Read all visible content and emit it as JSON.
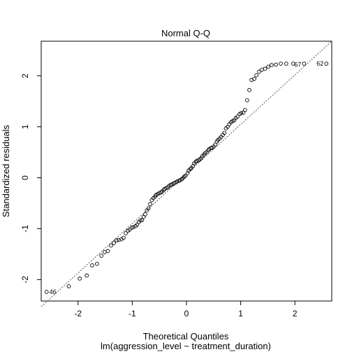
{
  "chart_data": {
    "type": "scatter",
    "title": "Normal Q-Q",
    "xlabel": "Theoretical Quantiles",
    "subtitle": "lm(aggression_level ~ treatment_duration)",
    "ylabel": "Standardized residuals",
    "xlim": [
      -2.68,
      2.68
    ],
    "ylim": [
      -2.42,
      2.68
    ],
    "x_ticks": [
      -2,
      -1,
      0,
      1,
      2
    ],
    "x_tick_labels": [
      "-2",
      "-1",
      "0",
      "1",
      "2"
    ],
    "y_ticks": [
      -2,
      -1,
      0,
      1,
      2
    ],
    "y_tick_labels": [
      "-2",
      "-1",
      "0",
      "1",
      "2"
    ],
    "reference_line": {
      "x1": -2.68,
      "y1": -2.53,
      "x2": 2.68,
      "y2": 2.68,
      "style": "dotted"
    },
    "points_x": [
      -2.58,
      -2.17,
      -1.97,
      -1.84,
      -1.74,
      -1.65,
      -1.57,
      -1.51,
      -1.45,
      -1.39,
      -1.34,
      -1.29,
      -1.25,
      -1.2,
      -1.16,
      -1.12,
      -1.08,
      -1.05,
      -1.01,
      -0.98,
      -0.94,
      -0.91,
      -0.88,
      -0.85,
      -0.82,
      -0.79,
      -0.76,
      -0.73,
      -0.7,
      -0.67,
      -0.64,
      -0.61,
      -0.58,
      -0.56,
      -0.53,
      -0.5,
      -0.47,
      -0.45,
      -0.42,
      -0.4,
      -0.37,
      -0.34,
      -0.32,
      -0.29,
      -0.27,
      -0.24,
      -0.22,
      -0.19,
      -0.17,
      -0.14,
      -0.12,
      -0.09,
      -0.07,
      -0.04,
      -0.02,
      0.02,
      0.04,
      0.07,
      0.09,
      0.12,
      0.14,
      0.17,
      0.19,
      0.22,
      0.24,
      0.27,
      0.29,
      0.32,
      0.34,
      0.37,
      0.4,
      0.42,
      0.45,
      0.47,
      0.5,
      0.53,
      0.56,
      0.58,
      0.61,
      0.64,
      0.67,
      0.7,
      0.73,
      0.76,
      0.79,
      0.82,
      0.85,
      0.88,
      0.91,
      0.94,
      0.98,
      1.01,
      1.05,
      1.08,
      1.12,
      1.16,
      1.2,
      1.25,
      1.29,
      1.34,
      1.39,
      1.45,
      1.51,
      1.57,
      1.65,
      1.74,
      1.84,
      1.97,
      2.17,
      2.58
    ],
    "points_y": [
      -2.24,
      -2.13,
      -1.98,
      -1.92,
      -1.72,
      -1.69,
      -1.53,
      -1.46,
      -1.44,
      -1.33,
      -1.28,
      -1.23,
      -1.22,
      -1.21,
      -1.18,
      -1.09,
      -1.04,
      -1.02,
      -0.98,
      -0.97,
      -0.95,
      -0.92,
      -0.87,
      -0.84,
      -0.83,
      -0.77,
      -0.72,
      -0.64,
      -0.6,
      -0.52,
      -0.44,
      -0.4,
      -0.37,
      -0.34,
      -0.32,
      -0.3,
      -0.29,
      -0.27,
      -0.24,
      -0.22,
      -0.2,
      -0.19,
      -0.16,
      -0.14,
      -0.13,
      -0.12,
      -0.1,
      -0.09,
      -0.07,
      -0.06,
      -0.05,
      -0.03,
      -0.01,
      0.02,
      0.04,
      0.09,
      0.14,
      0.17,
      0.19,
      0.23,
      0.28,
      0.31,
      0.33,
      0.34,
      0.36,
      0.38,
      0.42,
      0.45,
      0.48,
      0.5,
      0.54,
      0.56,
      0.58,
      0.59,
      0.61,
      0.65,
      0.71,
      0.74,
      0.77,
      0.8,
      0.84,
      0.88,
      0.97,
      1.0,
      1.05,
      1.09,
      1.11,
      1.13,
      1.17,
      1.2,
      1.25,
      1.27,
      1.28,
      1.33,
      1.52,
      1.72,
      1.92,
      1.94,
      2.01,
      2.08,
      2.12,
      2.14,
      2.18,
      2.21,
      2.22,
      2.24,
      2.24,
      2.24,
      2.24,
      2.24
    ],
    "display_points_x": [
      -2.58,
      -2.17,
      -1.97,
      -1.84,
      -1.74,
      -1.65,
      -1.57,
      -1.51,
      -1.45,
      -1.39,
      -1.34,
      -1.29,
      -1.25,
      -1.2,
      -1.16,
      -1.12,
      -1.08,
      -1.05,
      -1.01,
      -0.98,
      -0.94,
      -0.91,
      -0.88,
      -0.85,
      -0.82,
      -0.79,
      -0.76,
      -0.73,
      -0.7,
      -0.67,
      -0.64,
      -0.61,
      -0.58,
      -0.56,
      -0.53,
      -0.5,
      -0.47,
      -0.45,
      -0.42,
      -0.4,
      -0.37,
      -0.34,
      -0.32,
      -0.29,
      -0.27,
      -0.24,
      -0.22,
      -0.19,
      -0.17,
      -0.14,
      -0.12,
      -0.09,
      -0.07,
      -0.04,
      -0.02,
      0.02,
      0.04,
      0.07,
      0.09,
      0.12,
      0.14,
      0.17,
      0.19,
      0.22,
      0.24,
      0.27,
      0.29,
      0.32,
      0.34,
      0.37,
      0.4,
      0.42,
      0.45,
      0.47,
      0.5,
      0.53,
      0.56,
      0.58,
      0.61,
      0.64,
      0.67,
      0.7,
      0.73,
      0.76,
      0.79,
      0.82,
      0.85,
      0.88,
      0.91,
      0.94,
      0.98,
      1.01,
      1.05,
      1.08,
      1.12,
      1.16,
      1.2,
      1.25,
      1.29,
      1.34,
      1.39,
      1.45,
      1.51,
      1.57,
      1.65,
      1.74,
      1.84,
      1.97,
      2.17,
      2.58
    ],
    "labels": [
      {
        "text": "46",
        "x": -2.58,
        "y": -2.24,
        "side": "right"
      },
      {
        "text": "67",
        "x": 2.17,
        "y": 2.22,
        "side": "left"
      },
      {
        "text": "62",
        "x": 2.58,
        "y": 2.24,
        "side": "left"
      }
    ]
  }
}
